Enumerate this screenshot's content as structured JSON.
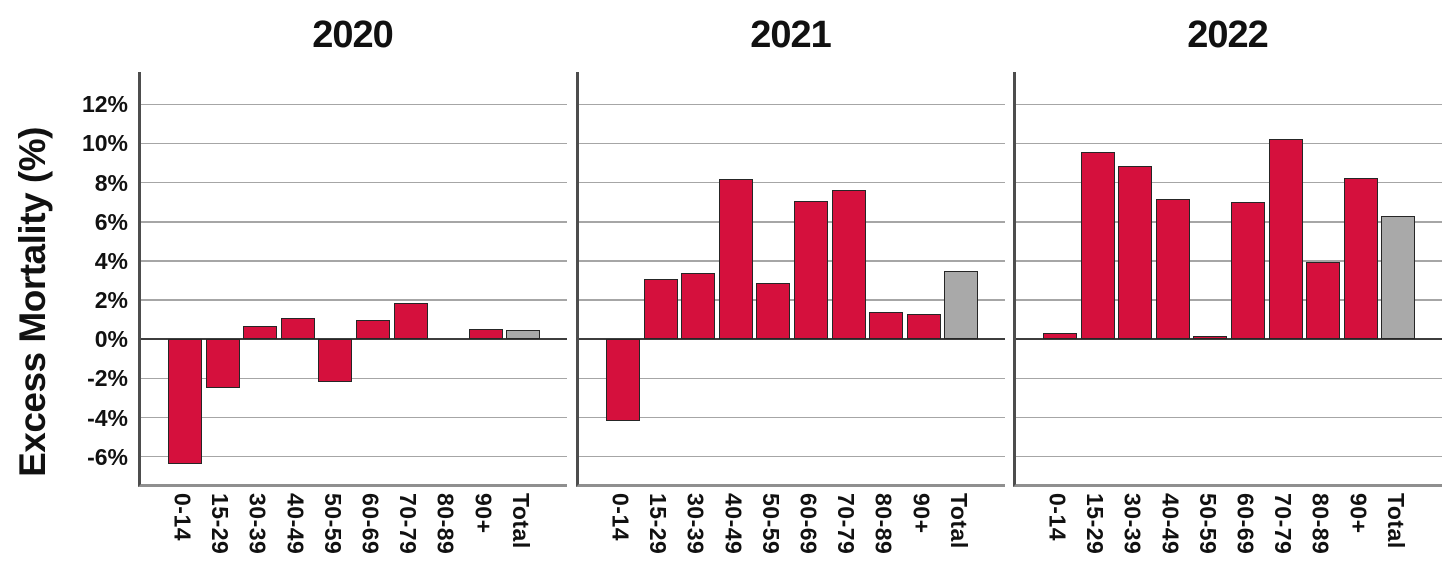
{
  "chart_data": {
    "type": "bar",
    "title": "",
    "ylabel": "Excess Mortality (%)",
    "xlabel": "",
    "grid": true,
    "legend": "none",
    "ylim": [
      -7.55,
      13.65
    ],
    "ytick_labels": [
      "12%",
      "10%",
      "8%",
      "6%",
      "4%",
      "2%",
      "0%",
      "-2%",
      "-4%",
      "-6%"
    ],
    "categories": [
      "0-14",
      "15-29",
      "30-39",
      "40-49",
      "50-59",
      "60-69",
      "70-79",
      "80-89",
      "90+",
      "Total"
    ],
    "panels": [
      {
        "title": "2020",
        "values": [
          -6.4,
          -2.5,
          0.7,
          1.1,
          -2.2,
          1.0,
          1.85,
          0.0,
          0.5,
          0.45
        ]
      },
      {
        "title": "2021",
        "values": [
          -4.2,
          3.1,
          3.4,
          8.2,
          2.85,
          7.05,
          7.6,
          1.4,
          1.3,
          3.5
        ]
      },
      {
        "title": "2022",
        "values": [
          0.3,
          9.55,
          8.85,
          7.15,
          0.15,
          7.0,
          10.25,
          3.95,
          8.25,
          6.3
        ]
      }
    ],
    "colors": {
      "age_bar": "#d5103d",
      "total_bar": "#a9a9a9",
      "bar_border": "#262626"
    }
  }
}
